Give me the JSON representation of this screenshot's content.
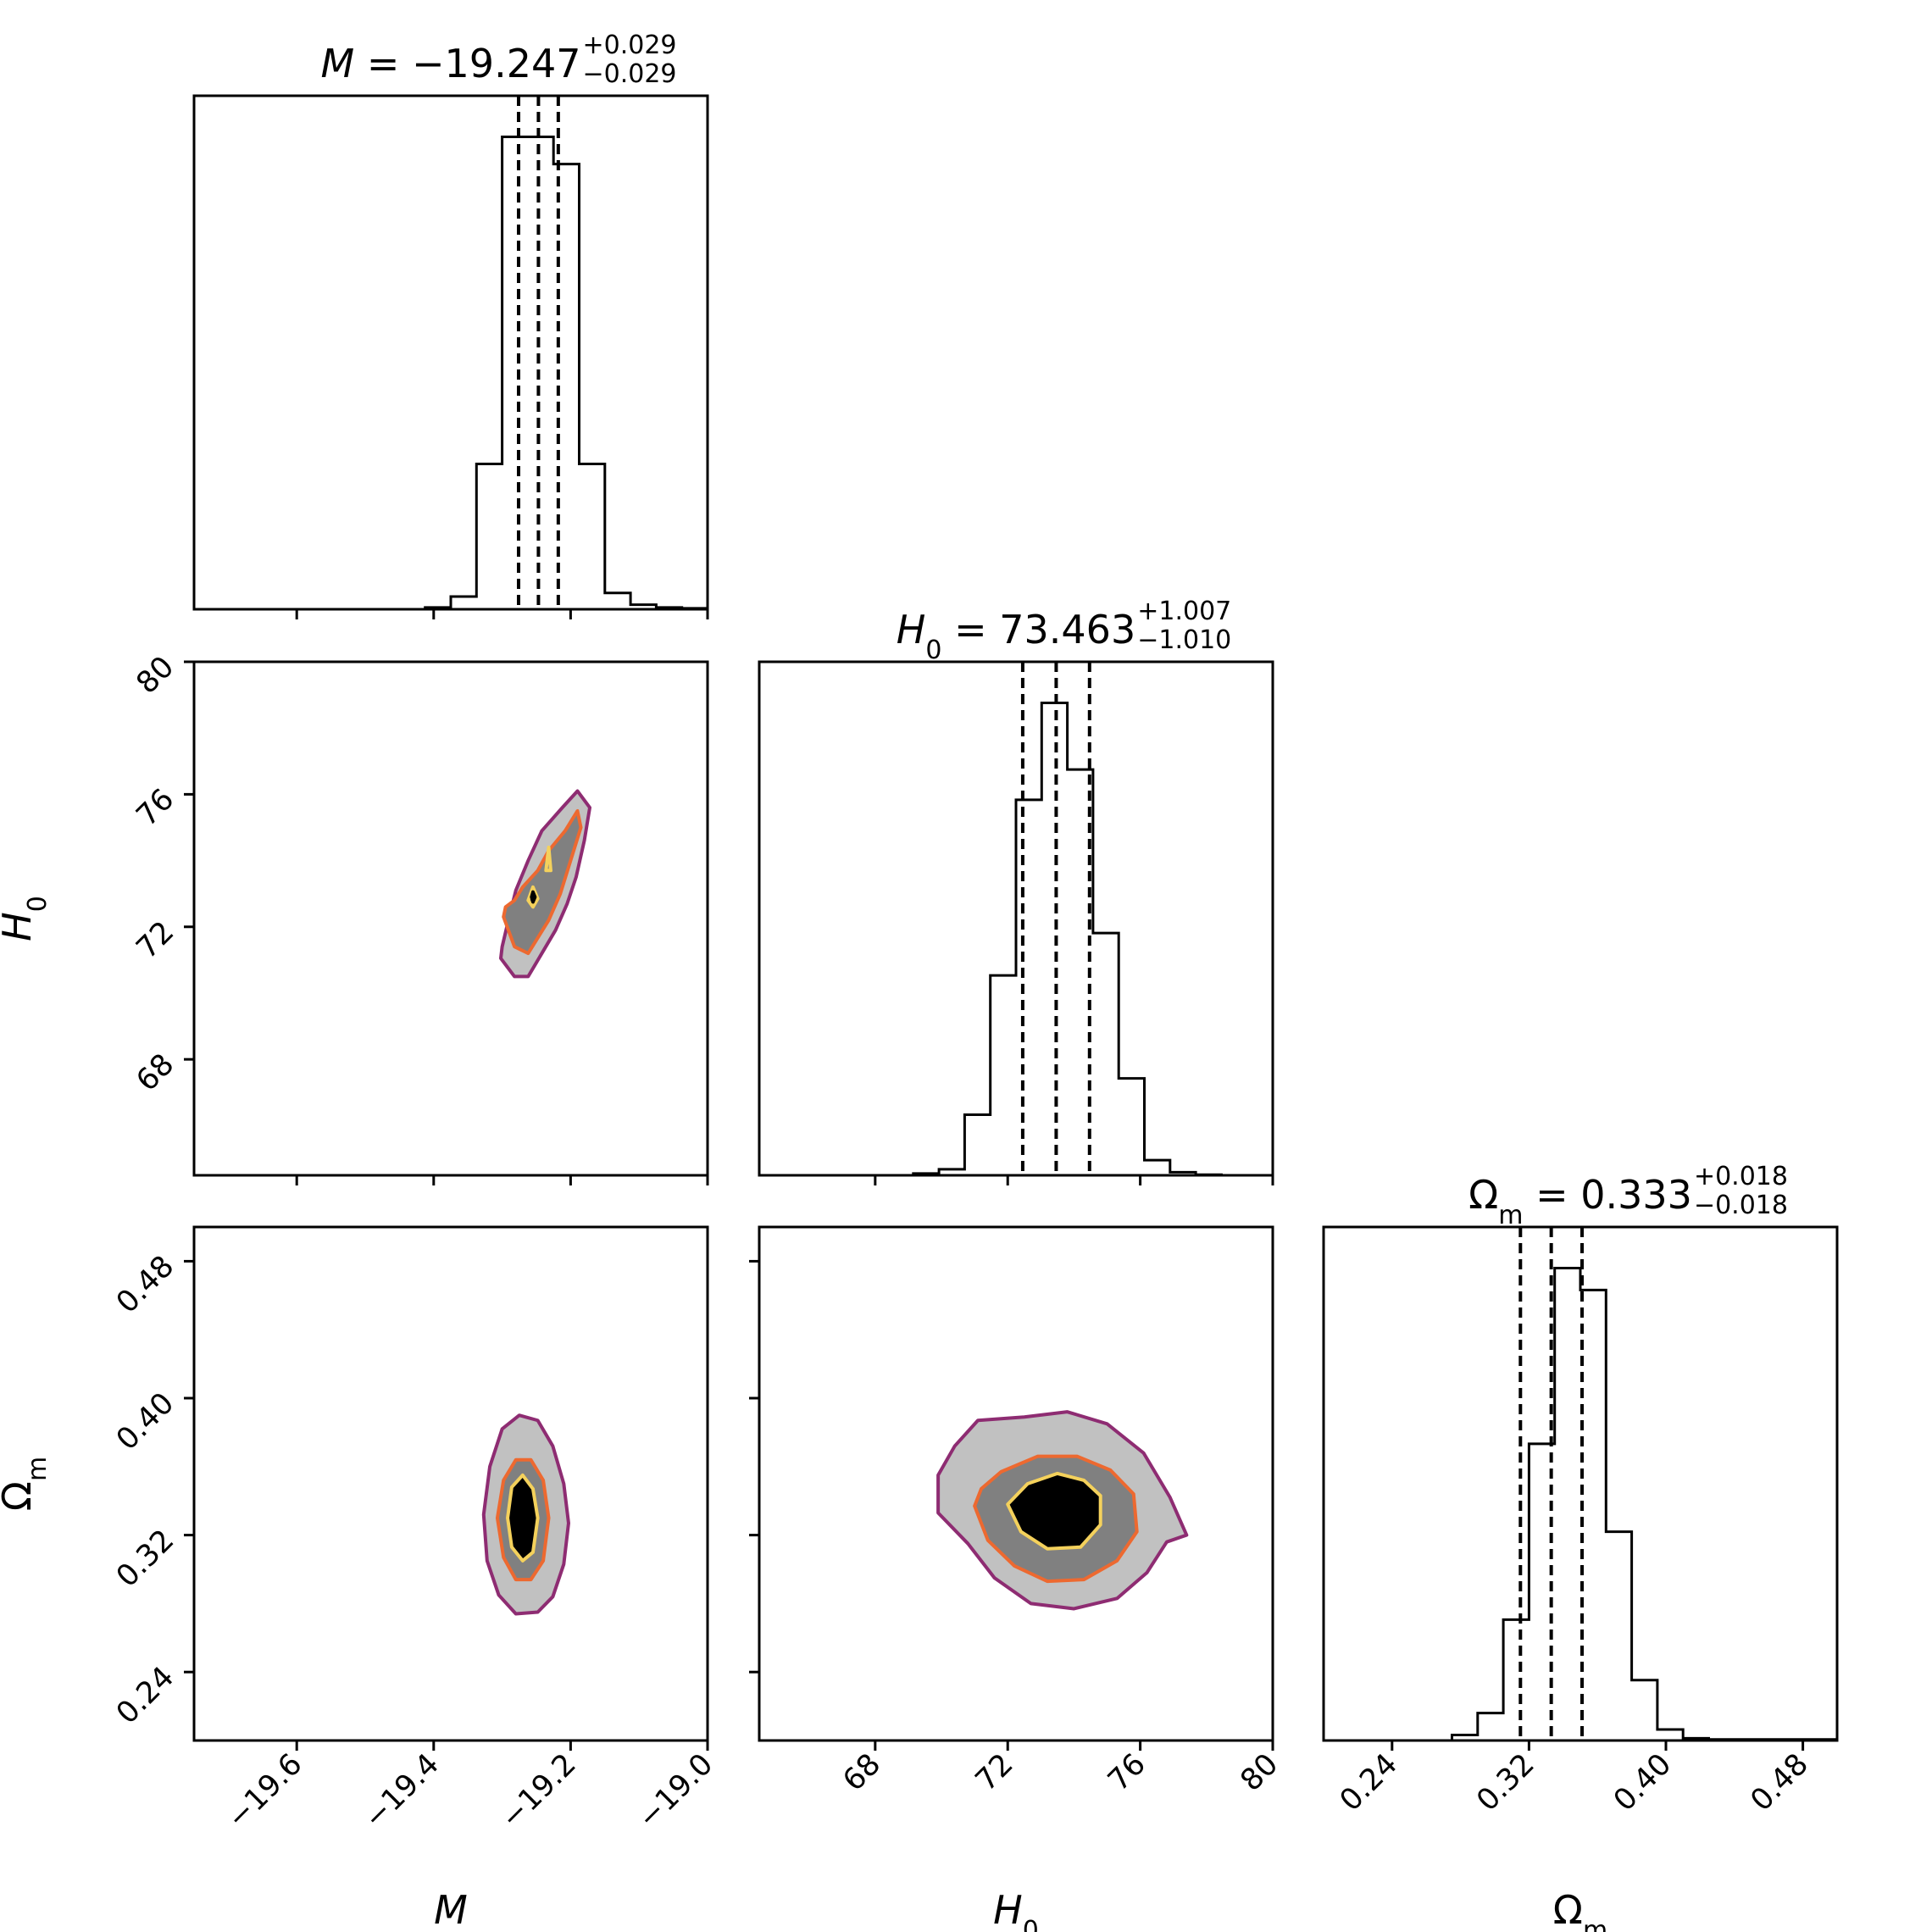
{
  "chart_data": {
    "type": "corner",
    "parameters": [
      {
        "key": "M",
        "label_symbol": "M",
        "label_sub": "",
        "title_value": "−19.247",
        "err_plus": "+0.029",
        "err_minus": "−0.029",
        "range": [
          -19.75,
          -19.0
        ],
        "ticks": [
          -19.6,
          -19.4,
          -19.2,
          -19.0
        ],
        "tick_labels": [
          "−19.6",
          "−19.4",
          "−19.2",
          "−19.0"
        ],
        "quantiles": [
          -19.276,
          -19.247,
          -19.218
        ],
        "hist_bins": [
          -19.75,
          -19.7125,
          -19.675,
          -19.6375,
          -19.6,
          -19.5625,
          -19.525,
          -19.4875,
          -19.45,
          -19.4125,
          -19.375,
          -19.3375,
          -19.3,
          -19.2625,
          -19.225,
          -19.1875,
          -19.15,
          -19.1125,
          -19.075,
          -19.0375,
          -19.0
        ],
        "hist_counts": [
          0,
          0,
          0,
          0,
          0,
          0,
          0,
          0,
          0,
          2,
          14,
          160,
          520,
          520,
          490,
          160,
          18,
          5,
          2,
          1
        ]
      },
      {
        "key": "H0",
        "label_symbol": "H",
        "label_sub": "0",
        "title_value": "73.463",
        "err_plus": "+1.007",
        "err_minus": "−1.010",
        "range": [
          64.5,
          80.0
        ],
        "ticks": [
          68,
          72,
          76,
          80
        ],
        "tick_labels": [
          "68",
          "72",
          "76",
          "80"
        ],
        "quantiles": [
          72.453,
          73.463,
          74.47
        ],
        "hist_bins": [
          64.5,
          65.275,
          66.05,
          66.825,
          67.6,
          68.375,
          69.15,
          69.925,
          70.7,
          71.475,
          72.25,
          73.025,
          73.8,
          74.575,
          75.35,
          76.125,
          76.9,
          77.675,
          78.45,
          79.225,
          80.0
        ],
        "hist_counts": [
          0,
          0,
          0,
          0,
          0,
          0,
          3,
          10,
          100,
          330,
          620,
          780,
          670,
          400,
          160,
          25,
          5,
          1,
          0,
          0
        ]
      },
      {
        "key": "Om",
        "label_symbol": "Ω",
        "label_sub": "m",
        "title_value": "0.333",
        "err_plus": "+0.018",
        "err_minus": "−0.018",
        "range": [
          0.2,
          0.5
        ],
        "ticks": [
          0.24,
          0.32,
          0.4,
          0.48
        ],
        "tick_labels": [
          "0.24",
          "0.32",
          "0.40",
          "0.48"
        ],
        "quantiles": [
          0.315,
          0.333,
          0.351
        ],
        "hist_bins": [
          0.2,
          0.215,
          0.23,
          0.245,
          0.26,
          0.275,
          0.29,
          0.305,
          0.32,
          0.335,
          0.35,
          0.365,
          0.38,
          0.395,
          0.41,
          0.425,
          0.44,
          0.455,
          0.47,
          0.485,
          0.5
        ],
        "hist_counts": [
          0,
          0,
          0,
          0,
          0,
          5,
          25,
          110,
          270,
          430,
          410,
          190,
          55,
          10,
          2,
          1,
          1,
          1,
          1,
          1
        ]
      }
    ],
    "joint": [
      {
        "x": "M",
        "y": "H0",
        "contours": [
          {
            "level": "outer",
            "color": "#8e2c72",
            "fill": "#c1c1c1",
            "points": [
              [
                -19.302,
                71.05
              ],
              [
                -19.282,
                70.5
              ],
              [
                -19.262,
                70.5
              ],
              [
                -19.242,
                71.2
              ],
              [
                -19.222,
                71.9
              ],
              [
                -19.205,
                72.7
              ],
              [
                -19.192,
                73.5
              ],
              [
                -19.18,
                74.6
              ],
              [
                -19.172,
                75.6
              ],
              [
                -19.19,
                76.1
              ],
              [
                -19.212,
                75.6
              ],
              [
                -19.242,
                74.9
              ],
              [
                -19.262,
                74.0
              ],
              [
                -19.28,
                73.1
              ],
              [
                -19.292,
                72.1
              ],
              [
                -19.3,
                71.4
              ]
            ]
          },
          {
            "level": "middle",
            "color": "#ed6930",
            "fill": "#808080",
            "points": [
              [
                -19.298,
                72.3
              ],
              [
                -19.282,
                71.4
              ],
              [
                -19.262,
                71.2
              ],
              [
                -19.25,
                71.6
              ],
              [
                -19.232,
                72.2
              ],
              [
                -19.215,
                73.0
              ],
              [
                -19.2,
                74.0
              ],
              [
                -19.185,
                75.0
              ],
              [
                -19.19,
                75.5
              ],
              [
                -19.208,
                74.9
              ],
              [
                -19.232,
                74.3
              ],
              [
                -19.248,
                73.7
              ],
              [
                -19.27,
                73.2
              ],
              [
                -19.282,
                72.8
              ],
              [
                -19.295,
                72.6
              ]
            ]
          },
          {
            "level": "inner_a",
            "color": "#f4d15c",
            "fill": "none",
            "points": [
              [
                -19.262,
                72.8
              ],
              [
                -19.255,
                73.2
              ],
              [
                -19.248,
                72.85
              ],
              [
                -19.255,
                72.6
              ]
            ]
          },
          {
            "level": "inner_b",
            "color": "#f4d15c",
            "fill": "none",
            "points": [
              [
                -19.236,
                73.7
              ],
              [
                -19.232,
                74.4
              ],
              [
                -19.229,
                73.7
              ]
            ]
          },
          {
            "level": "core",
            "color": "#000000",
            "fill": "#000000",
            "points": [
              [
                -19.257,
                72.9
              ],
              [
                -19.255,
                73.05
              ],
              [
                -19.252,
                72.9
              ],
              [
                -19.255,
                72.75
              ]
            ]
          }
        ]
      },
      {
        "x": "M",
        "y": "Om",
        "contours": [
          {
            "level": "outer",
            "color": "#8e2c72",
            "fill": "#c1c1c1",
            "points": [
              [
                -19.327,
                0.332
              ],
              [
                -19.322,
                0.305
              ],
              [
                -19.305,
                0.285
              ],
              [
                -19.28,
                0.274
              ],
              [
                -19.248,
                0.275
              ],
              [
                -19.226,
                0.284
              ],
              [
                -19.21,
                0.303
              ],
              [
                -19.203,
                0.327
              ],
              [
                -19.21,
                0.35
              ],
              [
                -19.226,
                0.372
              ],
              [
                -19.248,
                0.387
              ],
              [
                -19.275,
                0.39
              ],
              [
                -19.3,
                0.382
              ],
              [
                -19.318,
                0.36
              ]
            ]
          },
          {
            "level": "middle",
            "color": "#ed6930",
            "fill": "#808080",
            "points": [
              [
                -19.307,
                0.33
              ],
              [
                -19.298,
                0.307
              ],
              [
                -19.28,
                0.294
              ],
              [
                -19.258,
                0.294
              ],
              [
                -19.24,
                0.305
              ],
              [
                -19.232,
                0.33
              ],
              [
                -19.24,
                0.352
              ],
              [
                -19.258,
                0.364
              ],
              [
                -19.28,
                0.364
              ],
              [
                -19.298,
                0.352
              ]
            ]
          },
          {
            "level": "inner",
            "color": "#f4d15c",
            "fill": "#000000",
            "points": [
              [
                -19.292,
                0.33
              ],
              [
                -19.286,
                0.313
              ],
              [
                -19.27,
                0.305
              ],
              [
                -19.255,
                0.31
              ],
              [
                -19.248,
                0.33
              ],
              [
                -19.255,
                0.347
              ],
              [
                -19.27,
                0.355
              ],
              [
                -19.286,
                0.348
              ]
            ]
          }
        ]
      },
      {
        "x": "H0",
        "y": "Om",
        "contours": [
          {
            "level": "outer",
            "color": "#8e2c72",
            "fill": "#c1c1c1",
            "points": [
              [
                69.9,
                0.333
              ],
              [
                70.8,
                0.315
              ],
              [
                71.6,
                0.295
              ],
              [
                72.7,
                0.28
              ],
              [
                74.0,
                0.277
              ],
              [
                75.3,
                0.283
              ],
              [
                76.2,
                0.298
              ],
              [
                76.8,
                0.316
              ],
              [
                77.4,
                0.32
              ],
              [
                76.9,
                0.342
              ],
              [
                76.1,
                0.368
              ],
              [
                75.0,
                0.385
              ],
              [
                73.8,
                0.392
              ],
              [
                72.5,
                0.389
              ],
              [
                71.1,
                0.387
              ],
              [
                70.4,
                0.372
              ],
              [
                69.9,
                0.355
              ]
            ]
          },
          {
            "level": "middle",
            "color": "#ed6930",
            "fill": "#808080",
            "points": [
              [
                71.0,
                0.337
              ],
              [
                71.4,
                0.317
              ],
              [
                72.2,
                0.302
              ],
              [
                73.2,
                0.293
              ],
              [
                74.3,
                0.294
              ],
              [
                75.3,
                0.305
              ],
              [
                75.9,
                0.322
              ],
              [
                75.8,
                0.344
              ],
              [
                75.1,
                0.358
              ],
              [
                74.1,
                0.366
              ],
              [
                72.9,
                0.366
              ],
              [
                71.8,
                0.357
              ],
              [
                71.2,
                0.347
              ]
            ]
          },
          {
            "level": "inner",
            "color": "#f4d15c",
            "fill": "#000000",
            "points": [
              [
                72.0,
                0.338
              ],
              [
                72.4,
                0.322
              ],
              [
                73.2,
                0.312
              ],
              [
                74.2,
                0.313
              ],
              [
                74.8,
                0.326
              ],
              [
                74.8,
                0.343
              ],
              [
                74.3,
                0.352
              ],
              [
                73.5,
                0.356
              ],
              [
                72.6,
                0.35
              ]
            ]
          }
        ]
      }
    ]
  }
}
